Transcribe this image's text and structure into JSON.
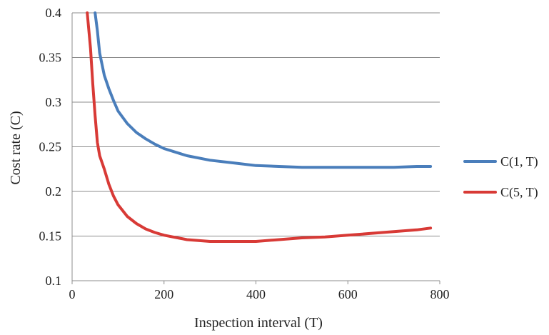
{
  "chart_data": {
    "type": "line",
    "title": "",
    "xlabel": "Inspection interval (T)",
    "ylabel": "Cost rate (C)",
    "xlim": [
      0,
      800
    ],
    "ylim": [
      0.1,
      0.4
    ],
    "x_ticks": [
      0,
      200,
      400,
      600,
      800
    ],
    "x_tick_labels": [
      "0",
      "200",
      "400",
      "600",
      "800"
    ],
    "y_ticks": [
      0.1,
      0.15,
      0.2,
      0.25,
      0.3,
      0.35,
      0.4
    ],
    "y_tick_labels": [
      "0.1",
      "0.15",
      "0.2",
      "0.25",
      "0.3",
      "0.35",
      "0.4"
    ],
    "grid": "horizontal",
    "legend_position": "right",
    "series": [
      {
        "name": "C(1, T)",
        "color": "#4a7ebb",
        "x": [
          50,
          55,
          60,
          70,
          80,
          90,
          100,
          120,
          140,
          160,
          180,
          200,
          250,
          300,
          350,
          400,
          450,
          500,
          550,
          600,
          650,
          700,
          750,
          780
        ],
        "y": [
          0.4,
          0.38,
          0.355,
          0.33,
          0.315,
          0.302,
          0.29,
          0.276,
          0.266,
          0.259,
          0.253,
          0.248,
          0.24,
          0.235,
          0.232,
          0.229,
          0.228,
          0.227,
          0.227,
          0.227,
          0.227,
          0.227,
          0.228,
          0.228
        ]
      },
      {
        "name": "C(5, T)",
        "color": "#d83a36",
        "x": [
          33,
          40,
          45,
          50,
          55,
          60,
          70,
          80,
          90,
          100,
          120,
          140,
          160,
          180,
          200,
          250,
          300,
          350,
          400,
          450,
          500,
          550,
          600,
          650,
          700,
          750,
          780
        ],
        "y": [
          0.4,
          0.36,
          0.32,
          0.285,
          0.255,
          0.24,
          0.225,
          0.208,
          0.195,
          0.185,
          0.172,
          0.164,
          0.158,
          0.154,
          0.151,
          0.146,
          0.144,
          0.144,
          0.144,
          0.146,
          0.148,
          0.149,
          0.151,
          0.153,
          0.155,
          0.157,
          0.159
        ]
      }
    ]
  }
}
